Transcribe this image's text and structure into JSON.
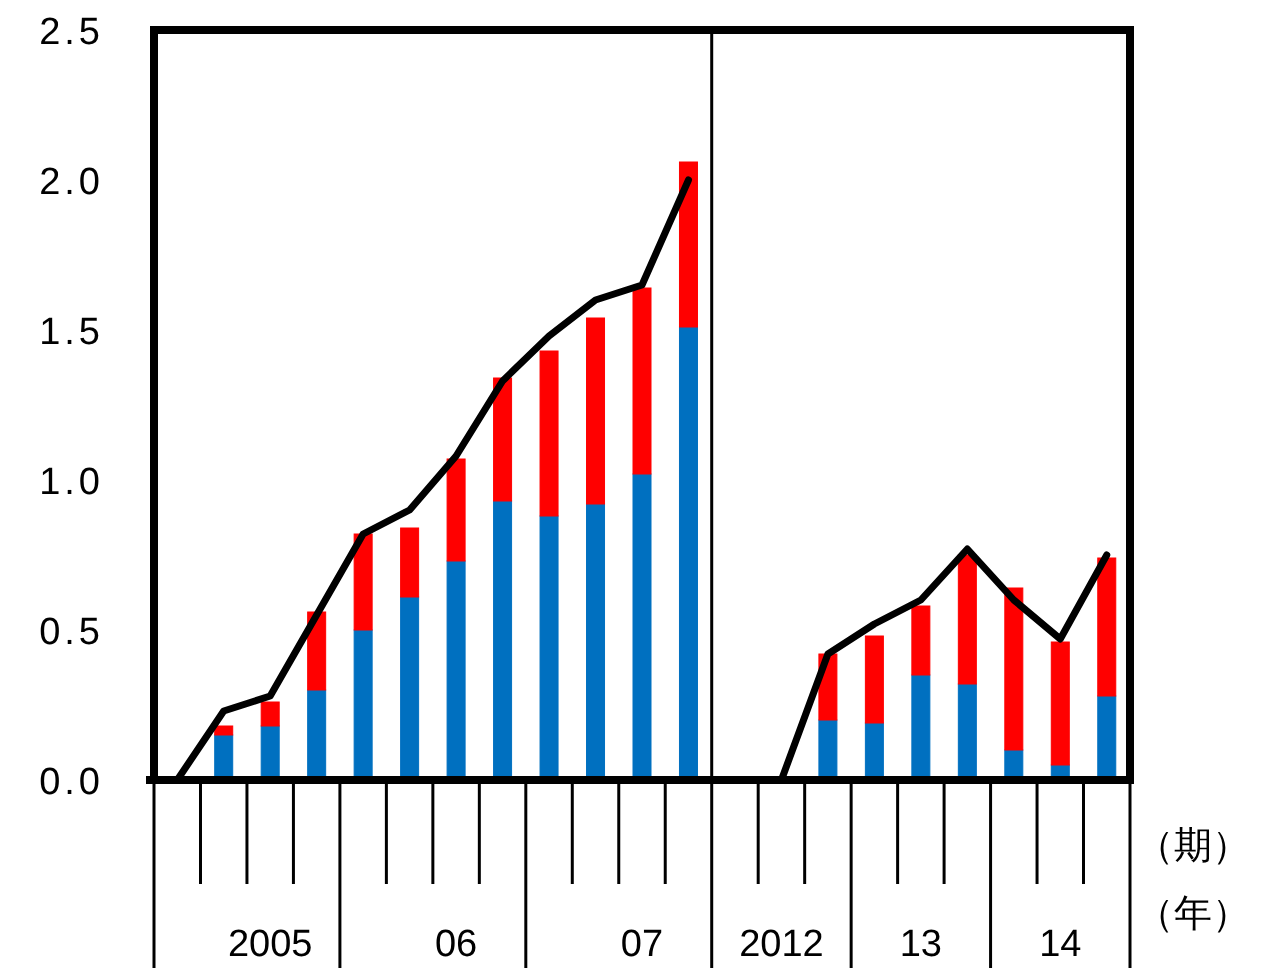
{
  "chart_data": {
    "type": "bar",
    "stacked": true,
    "xlabel": "（期）",
    "annotations": [
      "（年）"
    ],
    "categories": [
      null,
      null,
      "2005",
      null,
      null,
      null,
      "06",
      null,
      null,
      null,
      "07",
      null,
      null,
      "2012",
      null,
      null,
      "13",
      null,
      null,
      "14",
      null
    ],
    "series": [
      {
        "type": "bar",
        "color": "#0070c0",
        "values": [
          null,
          0.15,
          0.18,
          0.3,
          0.5,
          0.61,
          0.73,
          0.93,
          0.88,
          0.92,
          1.02,
          1.51,
          null,
          null,
          0.2,
          0.19,
          0.35,
          0.32,
          0.1,
          0.05,
          0.28
        ]
      },
      {
        "type": "bar",
        "color": "#ff0000",
        "values": [
          null,
          0.03,
          0.08,
          0.26,
          0.32,
          0.23,
          0.34,
          0.41,
          0.55,
          0.62,
          0.62,
          0.55,
          null,
          null,
          0.22,
          0.29,
          0.23,
          0.43,
          0.54,
          0.41,
          0.46
        ]
      },
      {
        "type": "line",
        "color": "#000000",
        "values": [
          0,
          0.23,
          0.28,
          0.55,
          0.82,
          0.9,
          1.08,
          1.33,
          1.48,
          1.6,
          1.65,
          2.0,
          null,
          0,
          0.42,
          0.52,
          0.6,
          0.77,
          0.6,
          0.47,
          0.75
        ]
      }
    ],
    "ylim": [
      0,
      2.5
    ],
    "yticks": [
      {
        "value": 0,
        "label": "0.0"
      },
      {
        "value": 0.5,
        "label": "0.5"
      },
      {
        "value": 1,
        "label": "1.0"
      },
      {
        "value": 1.5,
        "label": "1.5"
      },
      {
        "value": 2,
        "label": "2.0"
      },
      {
        "value": 2.5,
        "label": "2.5"
      }
    ]
  }
}
